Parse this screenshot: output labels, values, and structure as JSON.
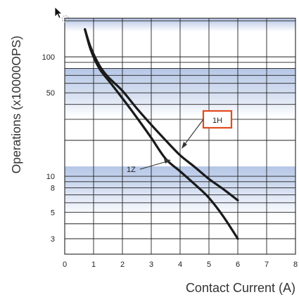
{
  "chart_data": {
    "type": "line",
    "xlabel": "Contact Current (A)",
    "ylabel": "Operations (x10000OPS)",
    "xlim": [
      0,
      8
    ],
    "ylim": [
      2,
      200
    ],
    "yscale": "log",
    "grid": true,
    "x_ticks": [
      "0",
      "1",
      "2",
      "3",
      "4",
      "5",
      "6",
      "7",
      "8"
    ],
    "y_ticks": [
      {
        "value": 100,
        "label": "100"
      },
      {
        "value": 50,
        "label": "50"
      },
      {
        "value": 10,
        "label": "10"
      },
      {
        "value": 8,
        "label": "8"
      },
      {
        "value": 5,
        "label": "5"
      },
      {
        "value": 3,
        "label": "3"
      }
    ],
    "series": [
      {
        "name": "1H",
        "x": [
          0.7,
          0.9,
          1.2,
          1.5,
          2.0,
          2.5,
          3.0,
          3.5,
          4.0,
          4.5,
          5.0,
          5.5,
          6.0
        ],
        "y": [
          170,
          120,
          85,
          68,
          52,
          37,
          27,
          20,
          15,
          12,
          9.5,
          7.8,
          6.3
        ]
      },
      {
        "name": "1Z",
        "x": [
          0.7,
          0.9,
          1.2,
          1.6,
          2.0,
          2.5,
          3.0,
          3.5,
          4.0,
          4.5,
          5.0,
          5.5,
          6.0
        ],
        "y": [
          170,
          115,
          80,
          60,
          45,
          31,
          21,
          14,
          11,
          8.6,
          6.6,
          4.6,
          3.0
        ]
      }
    ],
    "annotations": [
      {
        "text": "1H",
        "boxed": true,
        "box_color": "#e34a20"
      },
      {
        "text": "1Z",
        "boxed": false
      }
    ],
    "colors": {
      "curve": "#1a1a1a",
      "band": "#b8c8e8",
      "grid": "#222222"
    }
  }
}
